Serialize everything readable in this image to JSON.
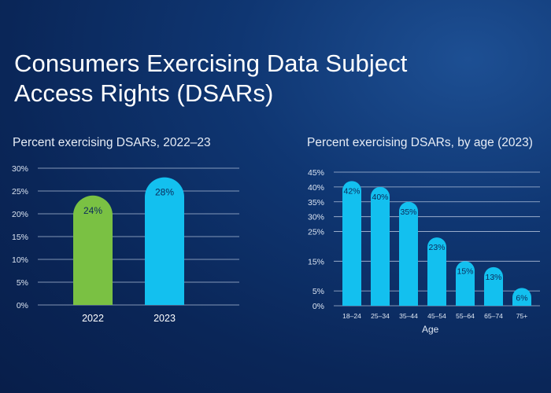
{
  "title": "Consumers Exercising Data Subject Access Rights (DSARs)",
  "colors": {
    "green": "#7ac143",
    "cyan": "#13c0ef",
    "grid": "#c9d6ea"
  },
  "chart_data": [
    {
      "type": "bar",
      "title": "Percent exercising DSARs, 2022–23",
      "categories": [
        "2022",
        "2023"
      ],
      "values": [
        24,
        28
      ],
      "data_labels": [
        "24%",
        "28%"
      ],
      "bar_colors": [
        "#7ac143",
        "#13c0ef"
      ],
      "ylim": [
        0,
        30
      ],
      "yticks": [
        0,
        5,
        10,
        15,
        20,
        25,
        30
      ],
      "ytick_labels": [
        "0%",
        "5%",
        "10%",
        "15%",
        "20%",
        "25%",
        "30%"
      ],
      "xlabel": "",
      "ylabel": "",
      "grid": true
    },
    {
      "type": "bar",
      "title": "Percent exercising DSARs, by age (2023)",
      "categories": [
        "18–24",
        "25–34",
        "35–44",
        "45–54",
        "55–64",
        "65–74",
        "75+"
      ],
      "values": [
        42,
        40,
        35,
        23,
        15,
        13,
        6
      ],
      "data_labels": [
        "42%",
        "40%",
        "35%",
        "23%",
        "15%",
        "13%",
        "6%"
      ],
      "bar_colors": [
        "#13c0ef"
      ],
      "ylim": [
        0,
        45
      ],
      "yticks": [
        0,
        5,
        15,
        25,
        30,
        35,
        40,
        45
      ],
      "ytick_labels": [
        "0%",
        "5%",
        "15%",
        "25%",
        "30%",
        "35%",
        "40%",
        "45%"
      ],
      "xlabel": "Age",
      "ylabel": "",
      "grid": true
    }
  ]
}
